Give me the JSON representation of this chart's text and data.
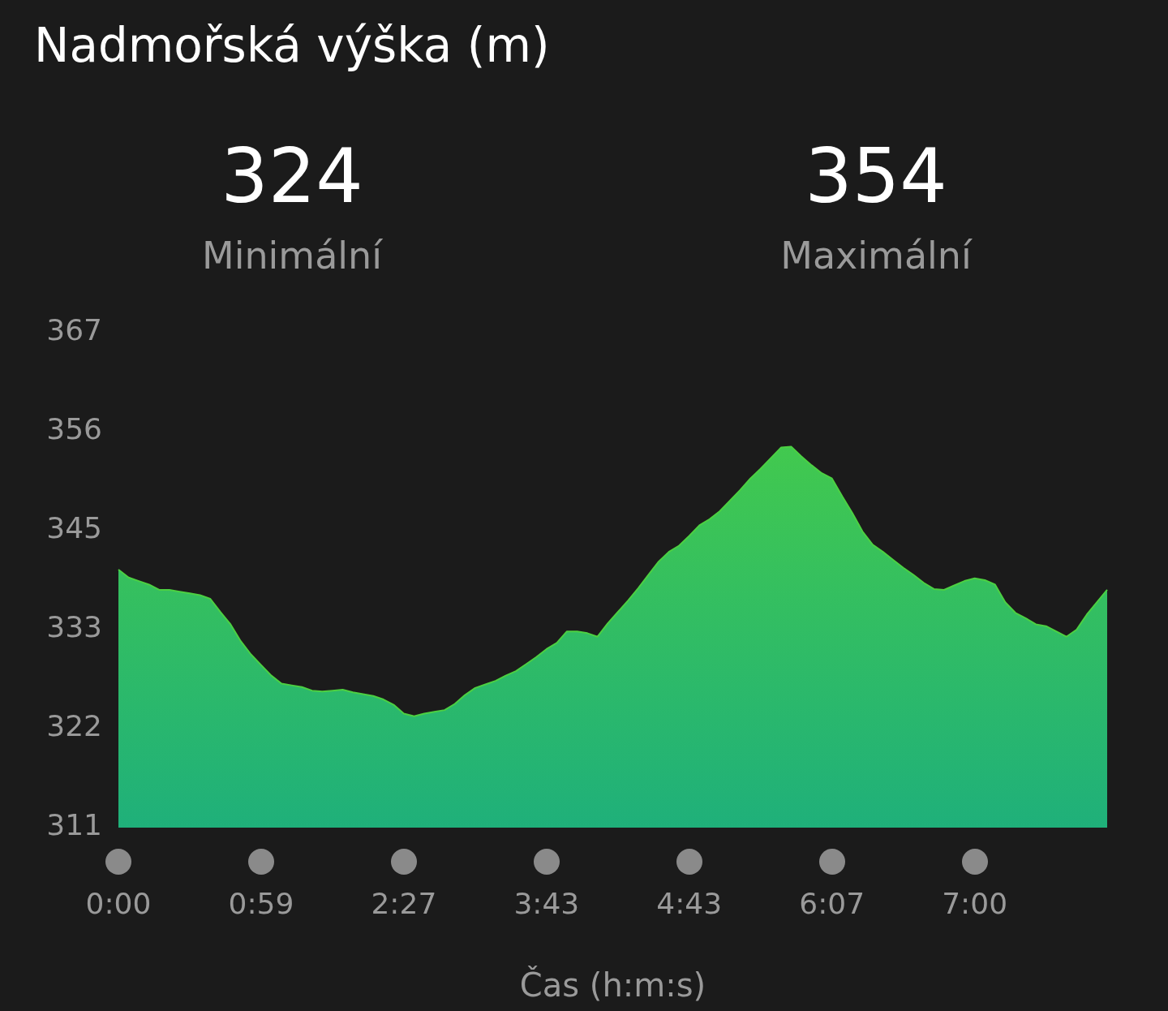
{
  "chart_data": {
    "type": "area",
    "title": "Nadmořská výška (m)",
    "xlabel": "Čas (h:m:s)",
    "annotations": [
      "324",
      "Minimální",
      "354",
      "Maximální"
    ],
    "categories": [
      "0:00",
      null,
      null,
      null,
      null,
      null,
      null,
      null,
      null,
      null,
      null,
      null,
      null,
      null,
      "0:59",
      null,
      null,
      null,
      null,
      null,
      null,
      null,
      null,
      null,
      null,
      null,
      null,
      null,
      "2:27",
      null,
      null,
      null,
      null,
      null,
      null,
      null,
      null,
      null,
      null,
      null,
      null,
      null,
      "3:43",
      null,
      null,
      null,
      null,
      null,
      null,
      null,
      null,
      null,
      null,
      null,
      null,
      null,
      "4:43",
      null,
      null,
      null,
      null,
      null,
      null,
      null,
      null,
      null,
      null,
      null,
      null,
      null,
      "6:07",
      null,
      null,
      null,
      null,
      null,
      null,
      null,
      null,
      null,
      null,
      null,
      null,
      null,
      "7:00",
      null,
      null,
      null,
      null,
      null,
      null,
      null,
      null,
      null,
      null,
      null,
      null,
      null
    ],
    "series": [
      {
        "color": "#4cd042",
        "values": [
          340.2,
          339.3,
          338.9,
          338.5,
          337.9,
          337.9,
          337.7,
          337.5,
          337.3,
          336.9,
          335.4,
          334.0,
          332.1,
          330.6,
          329.4,
          328.2,
          327.3,
          327.1,
          326.9,
          326.5,
          326.4,
          326.5,
          326.6,
          326.3,
          326.1,
          325.9,
          325.5,
          324.9,
          323.9,
          323.6,
          323.9,
          324.1,
          324.3,
          325.0,
          326.0,
          326.8,
          327.2,
          327.6,
          328.2,
          328.7,
          329.5,
          330.3,
          331.2,
          331.9,
          333.2,
          333.2,
          333.0,
          332.6,
          334.1,
          335.4,
          336.7,
          338.1,
          339.6,
          341.1,
          342.2,
          342.9,
          344.0,
          345.2,
          345.9,
          346.8,
          348.0,
          349.2,
          350.5,
          351.6,
          352.8,
          354.0,
          354.1,
          353.0,
          352.0,
          351.1,
          350.5,
          348.5,
          346.6,
          344.5,
          343.0,
          342.2,
          341.3,
          340.4,
          339.6,
          338.7,
          338.0,
          337.9,
          338.4,
          338.9,
          339.2,
          339.0,
          338.5,
          336.5,
          335.3,
          334.7,
          334.0,
          333.8,
          333.2,
          332.6,
          333.4,
          335.1,
          336.5,
          337.9
        ]
      }
    ],
    "ylim": [
      311,
      367
    ],
    "yticks": [
      {
        "value": 311,
        "label": "311"
      },
      {
        "value": 322.2,
        "label": "322"
      },
      {
        "value": 333.4,
        "label": "333"
      },
      {
        "value": 344.6,
        "label": "345"
      },
      {
        "value": 355.8,
        "label": "356"
      },
      {
        "value": 367,
        "label": "367"
      }
    ],
    "grid": false,
    "legend": false
  }
}
